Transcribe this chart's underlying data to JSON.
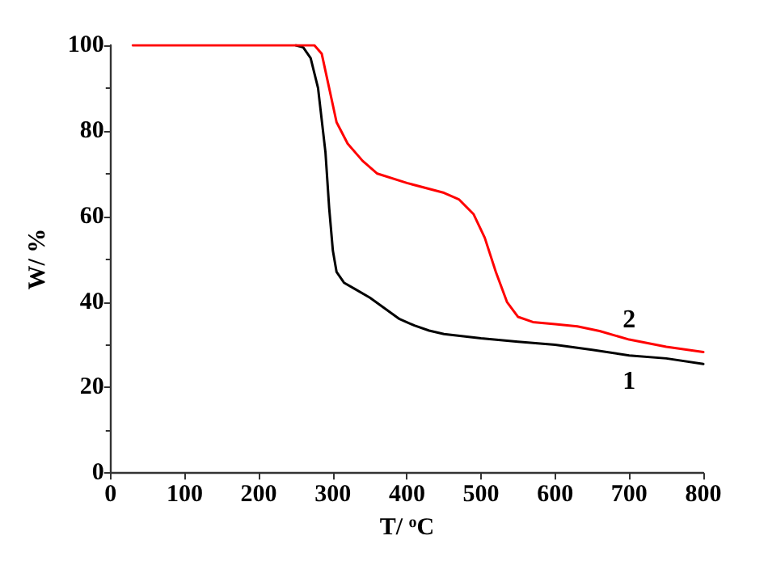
{
  "chart_data": {
    "type": "line",
    "xlabel": "T/ $^{o}$C",
    "ylabel": "W/ %",
    "xlim": [
      0,
      800
    ],
    "ylim": [
      0,
      100
    ],
    "xticks": [
      0,
      100,
      200,
      300,
      400,
      500,
      600,
      700,
      800
    ],
    "yticks": [
      0,
      20,
      40,
      60,
      80,
      100
    ],
    "grid": false,
    "legend": false,
    "marker": "none",
    "line_style": "solid",
    "series": [
      {
        "name": "1",
        "color": "#000000",
        "x": [
          250,
          260,
          270,
          280,
          290,
          295,
          300,
          305,
          315,
          330,
          350,
          370,
          390,
          410,
          430,
          450,
          500,
          550,
          600,
          650,
          700,
          750,
          800
        ],
        "values": [
          100,
          99.5,
          97,
          90,
          75,
          62,
          52,
          47,
          44.5,
          43,
          41,
          38.5,
          36,
          34.5,
          33.3,
          32.5,
          31.5,
          30.7,
          30,
          28.8,
          27.5,
          26.8,
          25.5
        ]
      },
      {
        "name": "2",
        "color": "#ff0000",
        "x": [
          30,
          275,
          285,
          295,
          305,
          320,
          340,
          360,
          400,
          450,
          470,
          490,
          505,
          520,
          535,
          550,
          570,
          600,
          630,
          660,
          700,
          750,
          800
        ],
        "values": [
          100,
          100,
          98,
          90,
          82,
          77,
          73,
          70,
          67.8,
          65.5,
          64,
          60.5,
          55,
          47,
          40,
          36.5,
          35.3,
          34.8,
          34.3,
          33.2,
          31.2,
          29.5,
          28.3
        ]
      }
    ]
  }
}
